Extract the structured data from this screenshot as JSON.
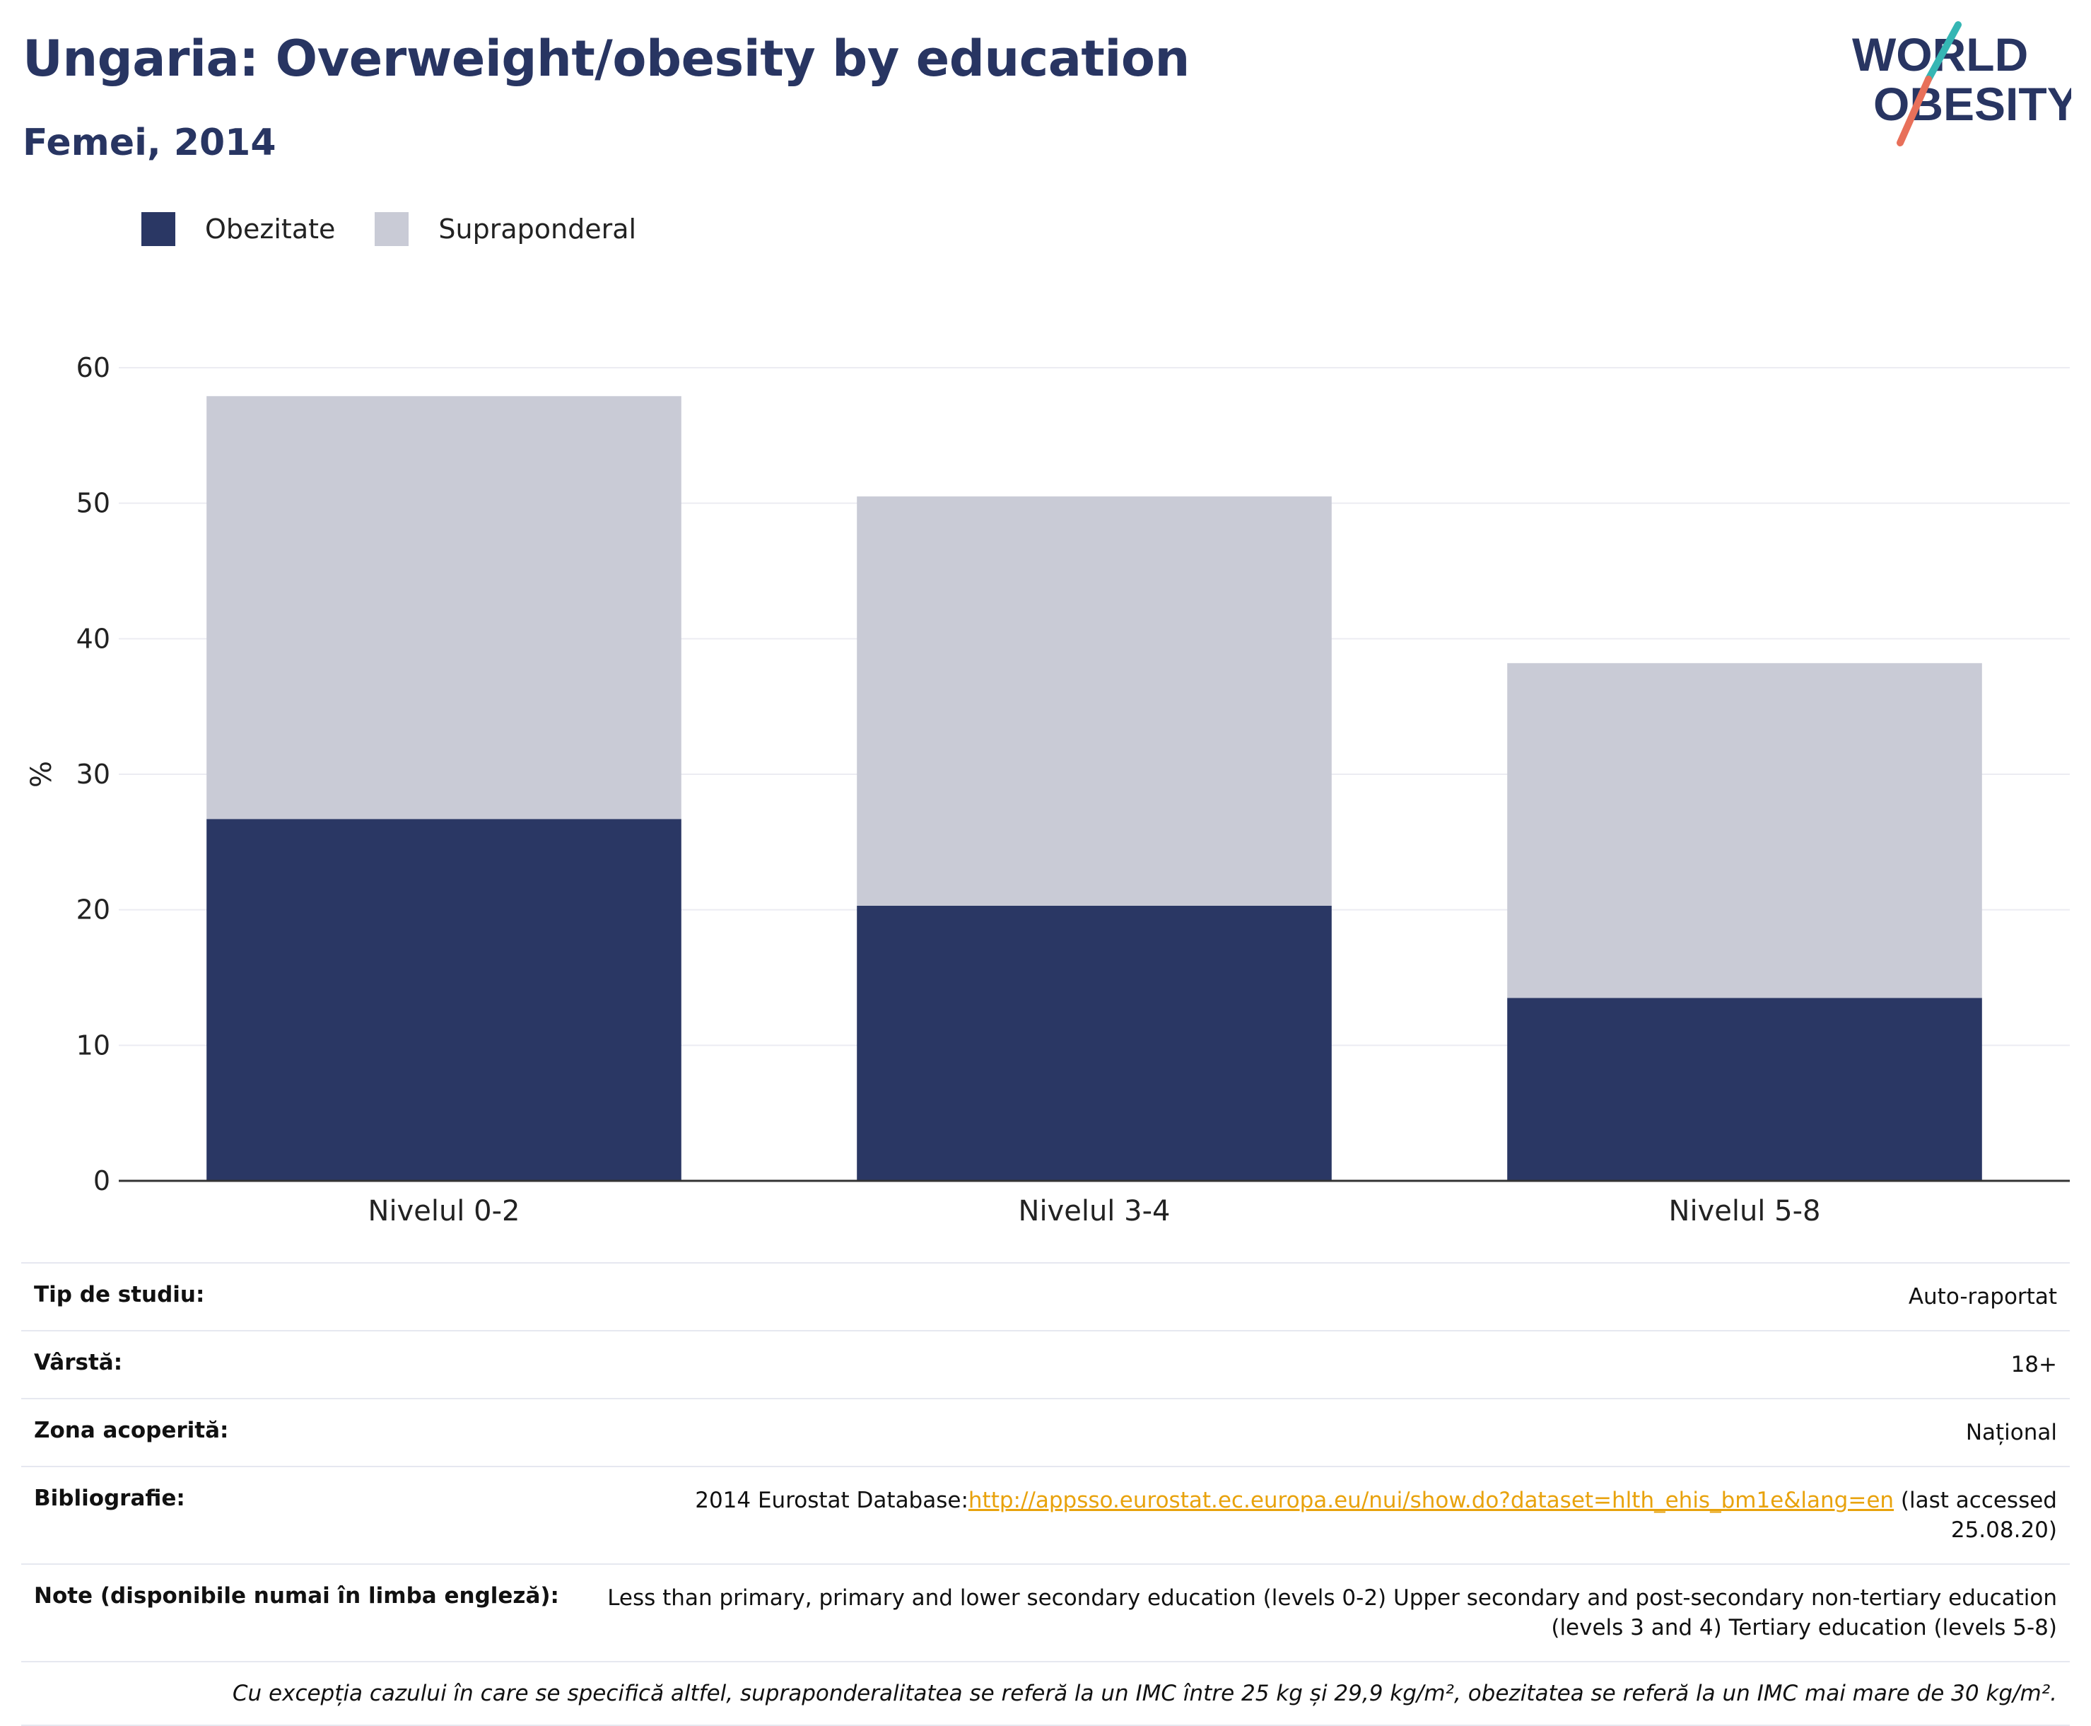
{
  "header": {
    "title": "Ungaria: Overweight/obesity by education",
    "subtitle": "Femei, 2014"
  },
  "logo": {
    "line1": "WORLD",
    "line2": "OBESITY"
  },
  "colors": {
    "obesity": "#2a3764",
    "overweight": "#c9cbd6",
    "text": "#283562",
    "link": "#e8a20c",
    "logo_teal": "#35b6b4",
    "logo_coral": "#e8705a",
    "grid": "#ececf2",
    "axis": "#333333"
  },
  "legend": [
    {
      "label": "Obezitate",
      "color": "#2a3764"
    },
    {
      "label": "Supraponderal",
      "color": "#c9cbd6"
    }
  ],
  "chart_data": {
    "type": "bar",
    "stacked": true,
    "categories": [
      "Nivelul 0-2",
      "Nivelul 3-4",
      "Nivelul 5-8"
    ],
    "series": [
      {
        "name": "Obezitate",
        "values": [
          26.7,
          20.3,
          13.5
        ]
      },
      {
        "name": "Supraponderal",
        "values": [
          31.2,
          30.2,
          24.7
        ]
      }
    ],
    "ylabel": "%",
    "ylim": [
      0,
      60
    ],
    "yticks": [
      0,
      10,
      20,
      30,
      40,
      50,
      60
    ],
    "grid": true,
    "legend_position": "top-left"
  },
  "info": {
    "rows": [
      {
        "key": "Tip de studiu:",
        "value": "Auto-raportat"
      },
      {
        "key": "Vârstă:",
        "value": "18+"
      },
      {
        "key": "Zona acoperită:",
        "value": "Național"
      }
    ],
    "bibliography": {
      "key": "Bibliografie:",
      "prefix": "2014 Eurostat Database:",
      "link": "http://appsso.eurostat.ec.europa.eu/nui/show.do?dataset=hlth_ehis_bm1e&lang=en",
      "suffix": " (last accessed 25.08.20)"
    },
    "notes": {
      "key": "Note (disponibile numai în limba engleză):",
      "value": "Less than primary, primary and lower secondary education (levels 0-2) Upper secondary and post-secondary non-tertiary education (levels 3 and 4) Tertiary education (levels 5-8)"
    },
    "footnote": "Cu excepția cazului în care se specifică altfel, supraponderalitatea se referă la un IMC între 25 kg și 29,9 kg/m², obezitatea se referă la un IMC mai mare de 30 kg/m²."
  }
}
